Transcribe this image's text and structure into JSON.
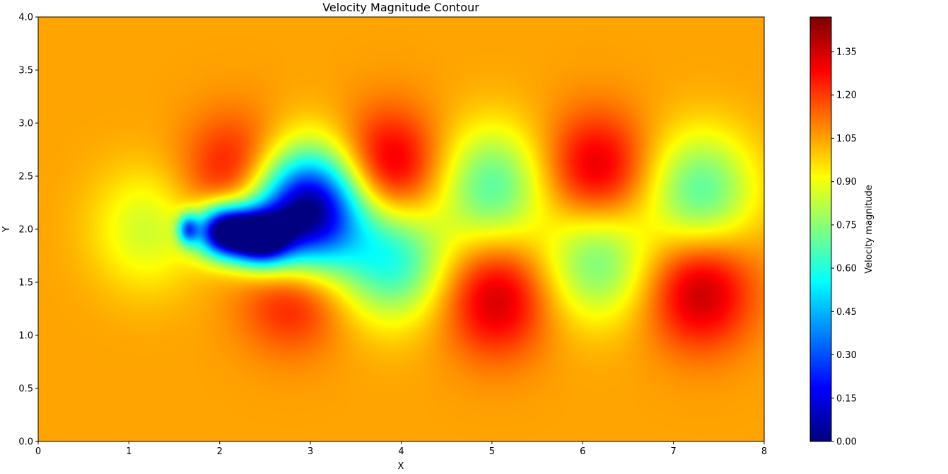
{
  "chart_data": {
    "type": "heatmap",
    "title": "Velocity Magnitude Contour",
    "xlabel": "X",
    "ylabel": "Y",
    "xlim": [
      0,
      8
    ],
    "ylim": [
      0,
      4
    ],
    "xticks": [
      "0",
      "1",
      "2",
      "3",
      "4",
      "5",
      "6",
      "7",
      "8"
    ],
    "yticks": [
      "0.0",
      "0.5",
      "1.0",
      "1.5",
      "2.0",
      "2.5",
      "3.0",
      "3.5",
      "4.0"
    ],
    "colorbar": {
      "label": "Velocity magnitude",
      "range": [
        0,
        1.47
      ],
      "ticks": [
        "0.00",
        "0.15",
        "0.30",
        "0.45",
        "0.60",
        "0.75",
        "0.90",
        "1.05",
        "1.20",
        "1.35"
      ],
      "colormap": "jet"
    },
    "freestream_value": 1.05,
    "features": [
      {
        "kind": "stagnation",
        "x": 1.65,
        "y": 2.0,
        "value": 0.55
      },
      {
        "kind": "wake_core",
        "x": 2.05,
        "y": 1.98,
        "value": 0.0
      },
      {
        "kind": "wake_core",
        "x": 2.45,
        "y": 1.92,
        "value": 0.1
      },
      {
        "kind": "low_speed",
        "x": 3.05,
        "y": 2.2,
        "value": 0.3
      },
      {
        "kind": "low_speed",
        "x": 2.75,
        "y": 2.05,
        "value": 0.55
      },
      {
        "kind": "low_speed",
        "x": 3.9,
        "y": 1.72,
        "value": 0.6
      },
      {
        "kind": "low_speed",
        "x": 5.0,
        "y": 2.4,
        "value": 0.68
      },
      {
        "kind": "low_speed",
        "x": 6.15,
        "y": 1.7,
        "value": 0.72
      },
      {
        "kind": "low_speed",
        "x": 7.3,
        "y": 2.35,
        "value": 0.68
      },
      {
        "kind": "low_speed",
        "x": 1.2,
        "y": 2.0,
        "value": 0.85
      },
      {
        "kind": "high_speed",
        "x": 2.2,
        "y": 2.5,
        "value": 1.33
      },
      {
        "kind": "high_speed",
        "x": 2.8,
        "y": 1.48,
        "value": 1.38
      },
      {
        "kind": "high_speed",
        "x": 3.85,
        "y": 2.55,
        "value": 1.4
      },
      {
        "kind": "high_speed",
        "x": 5.05,
        "y": 1.35,
        "value": 1.36
      },
      {
        "kind": "high_speed",
        "x": 6.15,
        "y": 2.55,
        "value": 1.35
      },
      {
        "kind": "high_speed",
        "x": 7.3,
        "y": 1.42,
        "value": 1.38
      }
    ]
  }
}
